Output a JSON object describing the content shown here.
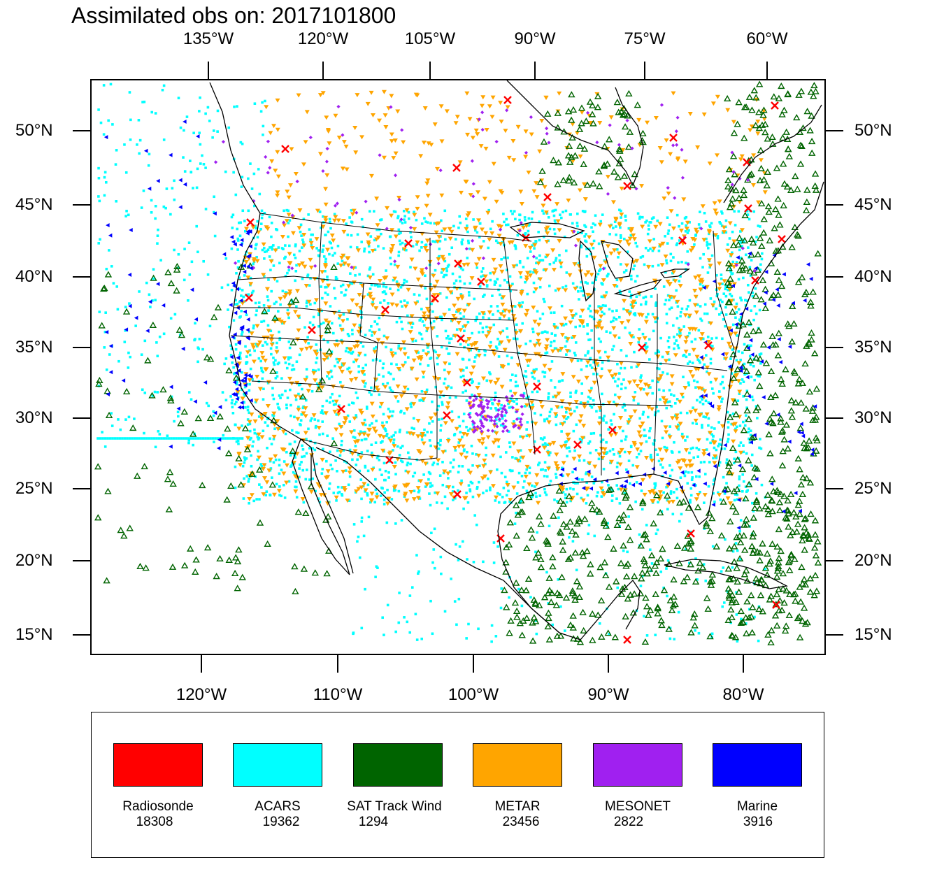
{
  "title": "Assimilated obs on: 2017101800",
  "axes": {
    "top_lon_labels": [
      "135°W",
      "120°W",
      "105°W",
      "90°W",
      "75°W",
      "60°W"
    ],
    "bottom_lon_labels": [
      "120°W",
      "110°W",
      "100°W",
      "90°W",
      "80°W"
    ],
    "lat_labels": [
      "50°N",
      "45°N",
      "40°N",
      "35°N",
      "30°N",
      "25°N",
      "20°N",
      "15°N"
    ]
  },
  "legend": [
    {
      "label": "Radiosonde",
      "count": "18308",
      "color": "#ff0000",
      "marker": "x-cross"
    },
    {
      "label": "ACARS",
      "count": "19362",
      "color": "#00ffff",
      "marker": "small-square"
    },
    {
      "label": "SAT Track Wind",
      "count": "1294",
      "color": "#006400",
      "marker": "hollow-triangle-up"
    },
    {
      "label": "METAR",
      "count": "23456",
      "color": "#ffa500",
      "marker": "triangle-down"
    },
    {
      "label": "MESONET",
      "count": "2822",
      "color": "#a020f0",
      "marker": "diamond"
    },
    {
      "label": "Marine",
      "count": "3916",
      "color": "#0000ff",
      "marker": "triangle-left"
    }
  ]
}
